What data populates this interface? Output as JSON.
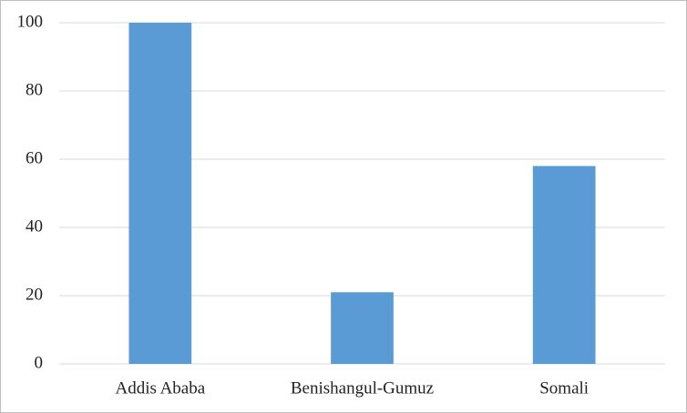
{
  "chart_data": {
    "type": "bar",
    "categories": [
      "Addis Ababa",
      "Benishangul-Gumuz",
      "Somali"
    ],
    "values": [
      100,
      21,
      58
    ],
    "color": "#5b9bd5",
    "ylim": [
      0,
      100
    ],
    "yticks": [
      0,
      20,
      40,
      60,
      80,
      100
    ],
    "grid": true
  }
}
